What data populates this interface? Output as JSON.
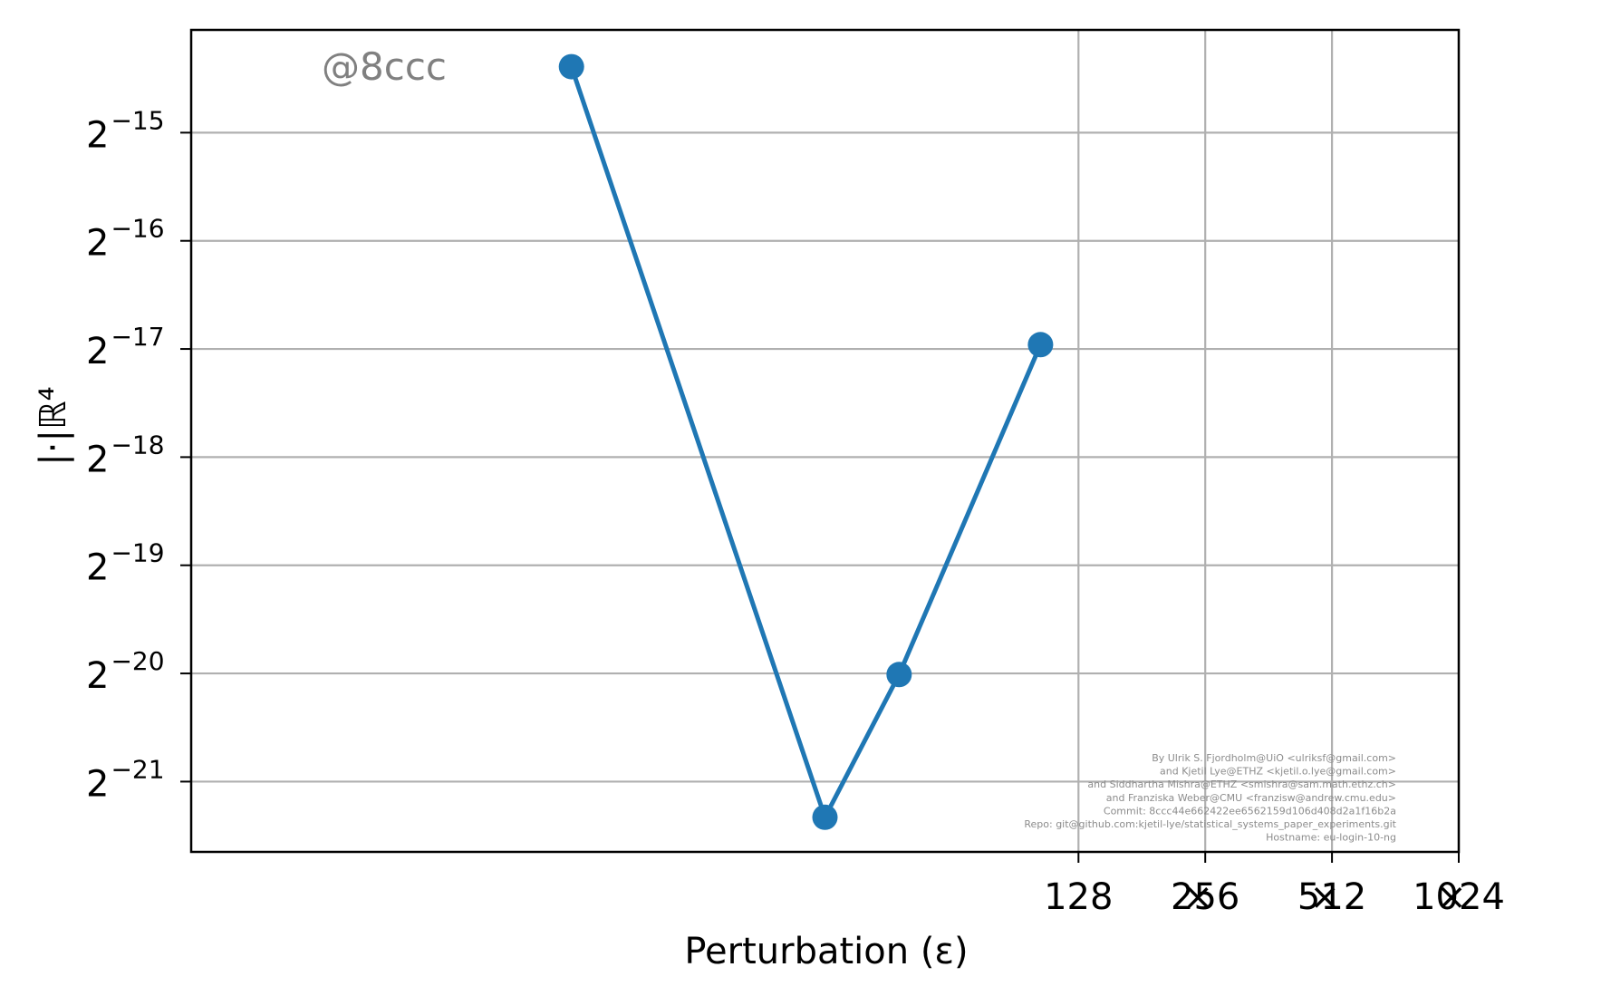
{
  "chart_data": {
    "type": "line",
    "title": "",
    "xlabel": "Perturbation (ε)",
    "ylabel": "|·|ℝ⁴",
    "y_scale": "log2",
    "ylim": [
      -21.65,
      -14.05
    ],
    "xlim": [
      1,
      1024
    ],
    "grid": true,
    "y_ticks": [
      {
        "exp": -15,
        "label": "−15"
      },
      {
        "exp": -16,
        "label": "−16"
      },
      {
        "exp": -17,
        "label": "−17"
      },
      {
        "exp": -18,
        "label": "−18"
      },
      {
        "exp": -19,
        "label": "−19"
      },
      {
        "exp": -20,
        "label": "−20"
      },
      {
        "exp": -21,
        "label": "−21"
      }
    ],
    "x_ticks": [
      {
        "value": 128,
        "label": "128"
      },
      {
        "value": 256,
        "label": "256"
      },
      {
        "value": 512,
        "label": "512"
      },
      {
        "value": 1024,
        "label": "1024"
      }
    ],
    "x_tick_multipliers": [
      {
        "value": 256,
        "label": "×"
      },
      {
        "value": 512,
        "label": "×"
      },
      {
        "value": 1024,
        "label": "×"
      }
    ],
    "series": [
      {
        "color": "#1f77b4",
        "points": [
          {
            "x": 8,
            "y_exp": -14.39
          },
          {
            "x": 32,
            "y_exp": -21.33
          },
          {
            "x": 48,
            "y_exp": -20.01
          },
          {
            "x": 104,
            "y_exp": -16.96
          }
        ]
      }
    ],
    "annotations": {
      "watermark": "@8ccc",
      "credits": [
        "By Ulrik S. Fjordholm@UiO <ulriksf@gmail.com>",
        "and Kjetil Lye@ETHZ <kjetil.o.lye@gmail.com>",
        "and Siddhartha Mishra@ETHZ <smishra@sam.math.ethz.ch>",
        "and Franziska Weber@CMU <franzisw@andrew.cmu.edu>",
        "Commit: 8ccc44e662422ee6562159d106d408d2a1f16b2a",
        "Repo: git@github.com:kjetil-lye/statistical_systems_paper_experiments.git",
        "Hostname: eu-login-10-ng"
      ]
    }
  }
}
